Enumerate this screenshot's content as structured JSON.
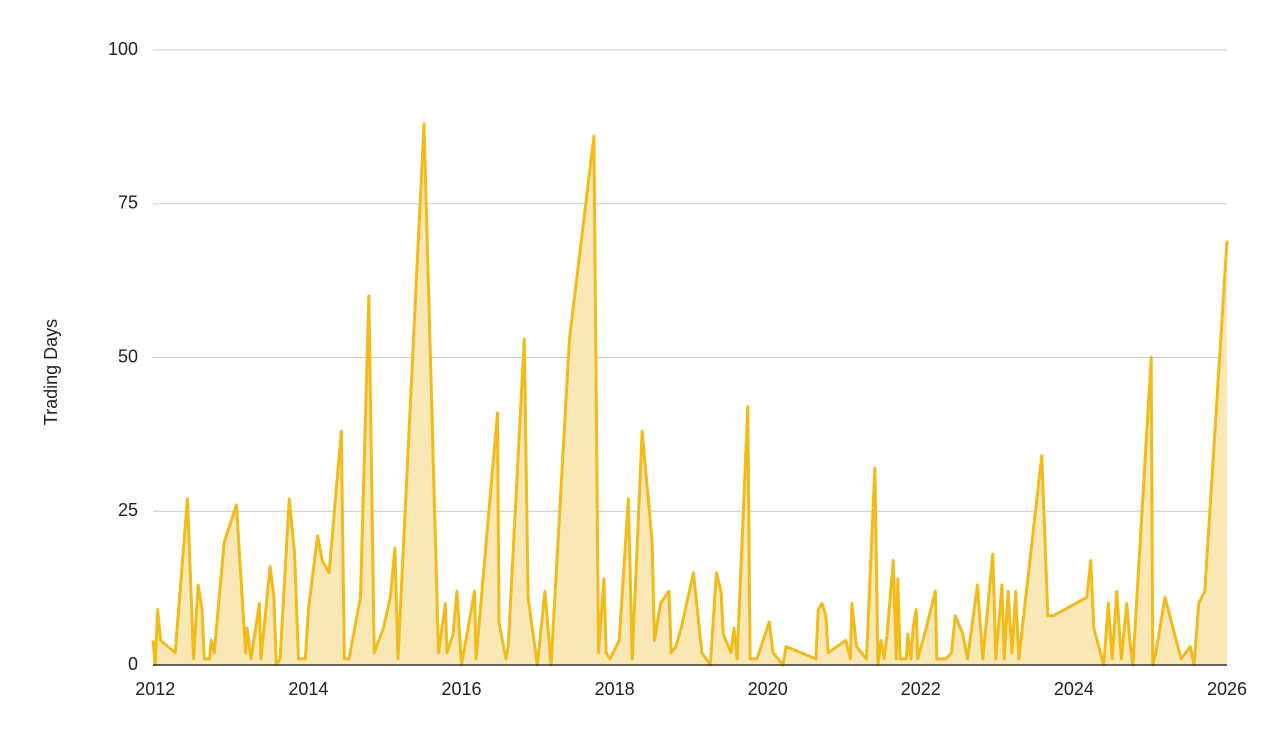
{
  "chart_data": {
    "type": "area",
    "y_label": "Trading Days",
    "x": [
      2011.97,
      2012.0,
      2012.03,
      2012.07,
      2012.26,
      2012.42,
      2012.5,
      2012.56,
      2012.61,
      2012.64,
      2012.71,
      2012.73,
      2012.77,
      2012.9,
      2013.06,
      2013.18,
      2013.2,
      2013.25,
      2013.36,
      2013.38,
      2013.5,
      2013.55,
      2013.58,
      2013.63,
      2013.75,
      2013.82,
      2013.87,
      2013.96,
      2014.0,
      2014.12,
      2014.18,
      2014.27,
      2014.43,
      2014.47,
      2014.53,
      2014.68,
      2014.79,
      2014.86,
      2014.98,
      2015.07,
      2015.13,
      2015.17,
      2015.51,
      2015.7,
      2015.79,
      2015.81,
      2015.89,
      2015.94,
      2016.0,
      2016.17,
      2016.19,
      2016.47,
      2016.49,
      2016.58,
      2016.61,
      2016.82,
      2016.87,
      2016.99,
      2017.09,
      2017.17,
      2017.41,
      2017.73,
      2017.79,
      2017.86,
      2017.89,
      2017.94,
      2018.06,
      2018.18,
      2018.23,
      2018.36,
      2018.49,
      2018.52,
      2018.6,
      2018.71,
      2018.74,
      2018.8,
      2018.87,
      2019.03,
      2019.14,
      2019.25,
      2019.33,
      2019.39,
      2019.42,
      2019.52,
      2019.56,
      2019.6,
      2019.74,
      2019.77,
      2019.86,
      2020.02,
      2020.07,
      2020.2,
      2020.24,
      2020.63,
      2020.66,
      2020.71,
      2020.76,
      2020.79,
      2021.02,
      2021.08,
      2021.1,
      2021.16,
      2021.29,
      2021.4,
      2021.44,
      2021.48,
      2021.52,
      2021.56,
      2021.64,
      2021.68,
      2021.7,
      2021.73,
      2021.81,
      2021.83,
      2021.87,
      2021.9,
      2021.94,
      2021.96,
      2022.07,
      2022.19,
      2022.21,
      2022.33,
      2022.4,
      2022.45,
      2022.55,
      2022.61,
      2022.74,
      2022.81,
      2022.94,
      2022.98,
      2023.06,
      2023.09,
      2023.14,
      2023.19,
      2023.24,
      2023.28,
      2023.58,
      2023.66,
      2023.73,
      2024.17,
      2024.22,
      2024.26,
      2024.39,
      2024.45,
      2024.5,
      2024.56,
      2024.62,
      2024.69,
      2024.73,
      2024.77,
      2025.01,
      2025.03,
      2025.07,
      2025.19,
      2025.4,
      2025.52,
      2025.57,
      2025.63,
      2025.71,
      2026.0
    ],
    "values": [
      4,
      0,
      9,
      4,
      2,
      27,
      1,
      13,
      9,
      1,
      1,
      4,
      2,
      20,
      26,
      2,
      6,
      1,
      10,
      1,
      16,
      11,
      0,
      1,
      27,
      18,
      1,
      1,
      9,
      21,
      17,
      15,
      38,
      1,
      1,
      11,
      60,
      2,
      6,
      11,
      19,
      1,
      88,
      2,
      10,
      2,
      5,
      12,
      0,
      12,
      1,
      41,
      7,
      1,
      3,
      53,
      11,
      0,
      12,
      0,
      53,
      86,
      2,
      14,
      2,
      1,
      4,
      27,
      1,
      38,
      20,
      4,
      10,
      12,
      2,
      3,
      6,
      15,
      2,
      0,
      15,
      12,
      5,
      2,
      6,
      1,
      42,
      1,
      1,
      7,
      2,
      0,
      3,
      1,
      9,
      10,
      8,
      2,
      4,
      1,
      10,
      3,
      1,
      32,
      0,
      4,
      1,
      5,
      17,
      1,
      14,
      1,
      1,
      5,
      1,
      6,
      9,
      1,
      6,
      12,
      1,
      1,
      2,
      8,
      5,
      1,
      13,
      1,
      18,
      1,
      13,
      1,
      12,
      2,
      12,
      1,
      34,
      8,
      8,
      11,
      17,
      6,
      0,
      10,
      1,
      12,
      1,
      10,
      4,
      0,
      50,
      0,
      2,
      11,
      1,
      3,
      0,
      10,
      12,
      69
    ],
    "color": "#f1bc1a",
    "fill": "#f9e8b5",
    "xlim": [
      2011.97,
      2026
    ],
    "xticks": [
      2012,
      2014,
      2016,
      2018,
      2020,
      2022,
      2024,
      2026
    ],
    "ylim": [
      0,
      100
    ],
    "yticks": [
      0,
      25,
      50,
      75,
      100
    ],
    "grid": true
  }
}
